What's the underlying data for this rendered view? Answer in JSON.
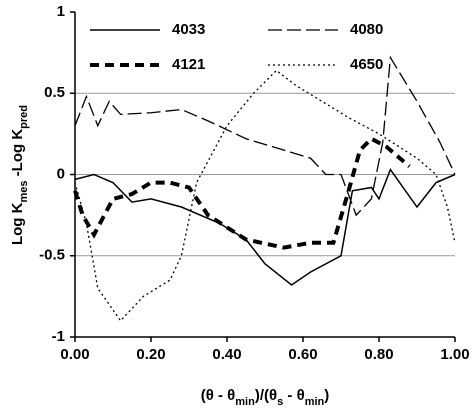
{
  "chart_data": {
    "type": "line",
    "y_label": [
      {
        "text": "Log K"
      },
      {
        "text": "mes",
        "sub": true
      },
      {
        "text": " -Log K"
      },
      {
        "text": "pred",
        "sub": true
      }
    ],
    "x_label": [
      {
        "text": "(θ - θ"
      },
      {
        "text": "min",
        "sub": true
      },
      {
        "text": ")/(θ"
      },
      {
        "text": "s",
        "sub": true
      },
      {
        "text": " - θ"
      },
      {
        "text": "min",
        "sub": true
      },
      {
        "text": ")"
      }
    ],
    "xlim": [
      0,
      1
    ],
    "ylim": [
      -1,
      1
    ],
    "xticks": [
      {
        "value": 0,
        "label": "0.00"
      },
      {
        "value": 0.2,
        "label": "0.20"
      },
      {
        "value": 0.4,
        "label": "0.40"
      },
      {
        "value": 0.6,
        "label": "0.60"
      },
      {
        "value": 0.8,
        "label": "0.80"
      },
      {
        "value": 1,
        "label": "1.00"
      }
    ],
    "yticks": [
      1,
      0.5,
      0,
      -0.5,
      -1
    ],
    "grid_lines": [
      0.5,
      0,
      -0.5
    ],
    "series": [
      {
        "name": "4033",
        "color": "#000000",
        "dash": "solid",
        "width": 1.5,
        "x": [
          0,
          0.05,
          0.1,
          0.15,
          0.2,
          0.28,
          0.38,
          0.45,
          0.5,
          0.57,
          0.62,
          0.7,
          0.73,
          0.78,
          0.8,
          0.83,
          0.9,
          0.95,
          1.0
        ],
        "values": [
          -0.03,
          0,
          -0.05,
          -0.17,
          -0.15,
          -0.2,
          -0.3,
          -0.4,
          -0.55,
          -0.68,
          -0.6,
          -0.5,
          -0.1,
          -0.08,
          -0.15,
          0.03,
          -0.2,
          -0.05,
          0
        ]
      },
      {
        "name": "4080",
        "color": "#000000",
        "dash": "long",
        "width": 1.3,
        "x": [
          0,
          0.03,
          0.06,
          0.09,
          0.12,
          0.2,
          0.28,
          0.35,
          0.45,
          0.55,
          0.62,
          0.66,
          0.7,
          0.74,
          0.78,
          0.81,
          0.83,
          0.9,
          0.96,
          1.0
        ],
        "values": [
          0.3,
          0.48,
          0.3,
          0.45,
          0.37,
          0.38,
          0.4,
          0.33,
          0.22,
          0.15,
          0.1,
          0,
          0,
          -0.25,
          -0.15,
          0.2,
          0.72,
          0.45,
          0.2,
          0
        ]
      },
      {
        "name": "4121",
        "color": "#000000",
        "dash": "thick",
        "width": 4,
        "x": [
          0,
          0.02,
          0.05,
          0.1,
          0.15,
          0.2,
          0.25,
          0.3,
          0.35,
          0.45,
          0.55,
          0.62,
          0.68,
          0.72,
          0.75,
          0.78,
          0.82,
          0.88
        ],
        "values": [
          -0.1,
          -0.25,
          -0.37,
          -0.15,
          -0.12,
          -0.05,
          -0.05,
          -0.08,
          -0.25,
          -0.4,
          -0.45,
          -0.42,
          -0.42,
          -0.1,
          0.15,
          0.22,
          0.17,
          0.05
        ]
      },
      {
        "name": "4650",
        "color": "#000000",
        "dash": "dotted",
        "width": 1.3,
        "x": [
          0,
          0.03,
          0.06,
          0.12,
          0.18,
          0.25,
          0.28,
          0.32,
          0.4,
          0.47,
          0.53,
          0.58,
          0.65,
          0.72,
          0.8,
          0.9,
          0.95,
          0.98,
          1.0
        ],
        "values": [
          -0.05,
          -0.3,
          -0.7,
          -0.9,
          -0.75,
          -0.65,
          -0.5,
          -0.05,
          0.3,
          0.5,
          0.64,
          0.55,
          0.45,
          0.35,
          0.25,
          0.1,
          0,
          -0.2,
          -0.42
        ]
      }
    ]
  }
}
